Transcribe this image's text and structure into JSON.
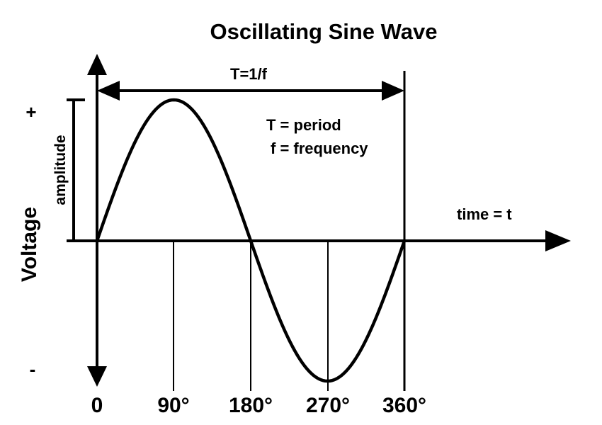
{
  "title": "Oscillating Sine Wave",
  "period_label": "T=1/f",
  "legend": {
    "period": "T = period",
    "frequency": "f = frequency"
  },
  "x_axis_label": "time = t",
  "y_axis_label": "Voltage",
  "amplitude_label": "amplitude",
  "plus_sign": "+",
  "minus_sign": "-",
  "ticks": [
    "0",
    "90°",
    "180°",
    "270°",
    "360°"
  ],
  "colors": {
    "stroke": "#000000",
    "background": "#ffffff"
  }
}
